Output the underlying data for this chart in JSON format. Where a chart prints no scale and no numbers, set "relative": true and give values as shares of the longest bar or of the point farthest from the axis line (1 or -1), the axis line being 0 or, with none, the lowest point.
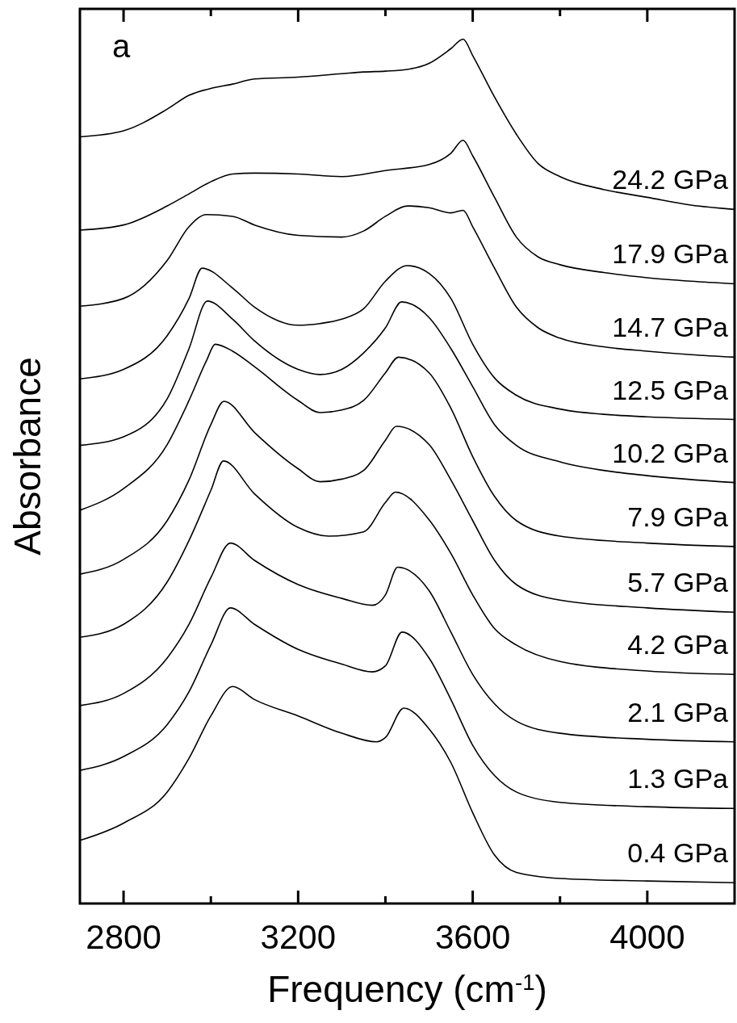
{
  "chart_data": {
    "type": "line",
    "relative": true,
    "xlabel": "Frequency (cm$^{-1}$)",
    "ylabel": "Absorbance",
    "annotations": [
      "a"
    ],
    "tick_labels": "x",
    "xlim": [
      2700,
      4200
    ],
    "xticks": [
      2800,
      {
        "value": 3000,
        "label": null
      },
      3200,
      {
        "value": 3400,
        "label": null
      },
      3600,
      {
        "value": 3800,
        "label": null
      },
      4000
    ],
    "series": [
      {
        "name": "24.2 GPa",
        "color": "#000000",
        "x": [
          2700,
          2800,
          2900,
          2950,
          3000,
          3050,
          3100,
          3200,
          3300,
          3350,
          3400,
          3450,
          3500,
          3550,
          3578,
          3600,
          3650,
          3700,
          3750,
          3800,
          3900,
          4000,
          4100,
          4200
        ],
        "values": [
          0.887,
          0.894,
          0.919,
          0.935,
          0.943,
          0.948,
          0.954,
          0.956,
          0.96,
          0.962,
          0.963,
          0.965,
          0.972,
          0.989,
          1,
          0.981,
          0.933,
          0.89,
          0.856,
          0.841,
          0.826,
          0.817,
          0.808,
          0.803
        ]
      },
      {
        "name": "17.9 GPa",
        "color": "#000000",
        "x": [
          2700,
          2800,
          2900,
          2950,
          3000,
          3050,
          3100,
          3200,
          3300,
          3400,
          3500,
          3550,
          3578,
          3600,
          3650,
          3700,
          3750,
          3800,
          3900,
          4000,
          4100,
          4200
        ],
        "values": [
          0.779,
          0.785,
          0.807,
          0.821,
          0.835,
          0.844,
          0.845,
          0.844,
          0.841,
          0.848,
          0.855,
          0.868,
          0.883,
          0.865,
          0.817,
          0.771,
          0.748,
          0.739,
          0.73,
          0.724,
          0.72,
          0.717
        ]
      },
      {
        "name": "14.7 GPa",
        "color": "#000000",
        "x": [
          2700,
          2800,
          2900,
          2950,
          2990,
          3050,
          3100,
          3200,
          3300,
          3350,
          3400,
          3450,
          3500,
          3550,
          3578,
          3600,
          3650,
          3700,
          3750,
          3800,
          3900,
          4000,
          4100,
          4200
        ],
        "values": [
          0.691,
          0.7,
          0.744,
          0.783,
          0.797,
          0.795,
          0.785,
          0.773,
          0.771,
          0.778,
          0.795,
          0.807,
          0.805,
          0.799,
          0.802,
          0.783,
          0.735,
          0.69,
          0.666,
          0.654,
          0.644,
          0.639,
          0.635,
          0.632
        ]
      },
      {
        "name": "12.5 GPa",
        "color": "#000000",
        "x": [
          2700,
          2800,
          2900,
          2950,
          2980,
          3050,
          3100,
          3200,
          3250,
          3300,
          3350,
          3400,
          3450,
          3500,
          3550,
          3600,
          3650,
          3700,
          3800,
          3900,
          4000,
          4200
        ],
        "values": [
          0.607,
          0.618,
          0.657,
          0.7,
          0.735,
          0.712,
          0.69,
          0.669,
          0.671,
          0.676,
          0.688,
          0.72,
          0.738,
          0.729,
          0.7,
          0.647,
          0.608,
          0.588,
          0.572,
          0.566,
          0.563,
          0.56
        ]
      },
      {
        "name": "10.2 GPa",
        "color": "#000000",
        "x": [
          2700,
          2800,
          2900,
          2950,
          2992,
          3050,
          3100,
          3200,
          3250,
          3300,
          3350,
          3400,
          3437,
          3500,
          3550,
          3600,
          3650,
          3700,
          3800,
          3900,
          4000,
          4200
        ],
        "values": [
          0.53,
          0.54,
          0.584,
          0.642,
          0.697,
          0.676,
          0.651,
          0.618,
          0.612,
          0.618,
          0.637,
          0.666,
          0.696,
          0.678,
          0.642,
          0.598,
          0.554,
          0.53,
          0.511,
          0.501,
          0.495,
          0.487
        ]
      },
      {
        "name": "7.9 GPa",
        "color": "#000000",
        "x": [
          2700,
          2800,
          2900,
          2950,
          2990,
          3010,
          3050,
          3100,
          3200,
          3250,
          3300,
          3350,
          3400,
          3430,
          3500,
          3550,
          3600,
          3650,
          3700,
          3800,
          4000,
          4200
        ],
        "values": [
          0.455,
          0.48,
          0.531,
          0.582,
          0.628,
          0.647,
          0.639,
          0.621,
          0.582,
          0.568,
          0.571,
          0.582,
          0.614,
          0.632,
          0.614,
          0.573,
          0.517,
          0.471,
          0.443,
          0.425,
          0.417,
          0.413
        ]
      },
      {
        "name": "5.7 GPa",
        "color": "#000000",
        "x": [
          2700,
          2800,
          2900,
          2950,
          3000,
          3030,
          3100,
          3200,
          3250,
          3300,
          3350,
          3400,
          3425,
          3500,
          3550,
          3600,
          3650,
          3700,
          3800,
          4000,
          4200
        ],
        "values": [
          0.381,
          0.398,
          0.443,
          0.49,
          0.554,
          0.581,
          0.545,
          0.503,
          0.488,
          0.491,
          0.501,
          0.536,
          0.552,
          0.531,
          0.49,
          0.443,
          0.397,
          0.369,
          0.351,
          0.342,
          0.337
        ]
      },
      {
        "name": "4.2 GPa",
        "color": "#000000",
        "x": [
          2700,
          2800,
          2900,
          2950,
          3000,
          3029,
          3100,
          3200,
          3270,
          3350,
          3400,
          3423,
          3500,
          3550,
          3600,
          3650,
          3700,
          3800,
          4000,
          4200
        ],
        "values": [
          0.308,
          0.323,
          0.372,
          0.42,
          0.478,
          0.512,
          0.474,
          0.435,
          0.425,
          0.43,
          0.464,
          0.476,
          0.444,
          0.405,
          0.357,
          0.318,
          0.299,
          0.28,
          0.269,
          0.265
        ]
      },
      {
        "name": "2.1 GPa",
        "color": "#000000",
        "x": [
          2700,
          2800,
          2900,
          2950,
          3000,
          3045,
          3100,
          3200,
          3300,
          3370,
          3400,
          3428,
          3500,
          3550,
          3600,
          3650,
          3700,
          3800,
          4000,
          4200
        ],
        "values": [
          0.229,
          0.243,
          0.284,
          0.323,
          0.377,
          0.417,
          0.397,
          0.369,
          0.353,
          0.345,
          0.357,
          0.389,
          0.362,
          0.314,
          0.265,
          0.231,
          0.211,
          0.197,
          0.19,
          0.187
        ]
      },
      {
        "name": "1.3 GPa",
        "color": "#000000",
        "x": [
          2700,
          2800,
          2900,
          2950,
          3000,
          3045,
          3100,
          3200,
          3300,
          3370,
          3400,
          3438,
          3500,
          3550,
          3600,
          3650,
          3700,
          3800,
          4000,
          4200
        ],
        "values": [
          0.154,
          0.17,
          0.207,
          0.245,
          0.299,
          0.342,
          0.323,
          0.294,
          0.277,
          0.268,
          0.275,
          0.314,
          0.284,
          0.236,
          0.183,
          0.148,
          0.129,
          0.117,
          0.112,
          0.11
        ]
      },
      {
        "name": "0.4 GPa",
        "color": "#000000",
        "x": [
          2700,
          2800,
          2900,
          2950,
          3000,
          3050,
          3100,
          3200,
          3300,
          3380,
          3400,
          3442,
          3500,
          3550,
          3600,
          3650,
          3700,
          3800,
          4000,
          4200
        ],
        "values": [
          0.073,
          0.093,
          0.129,
          0.168,
          0.217,
          0.251,
          0.236,
          0.217,
          0.197,
          0.187,
          0.192,
          0.226,
          0.202,
          0.163,
          0.105,
          0.056,
          0.036,
          0.029,
          0.026,
          0.024
        ]
      }
    ]
  }
}
